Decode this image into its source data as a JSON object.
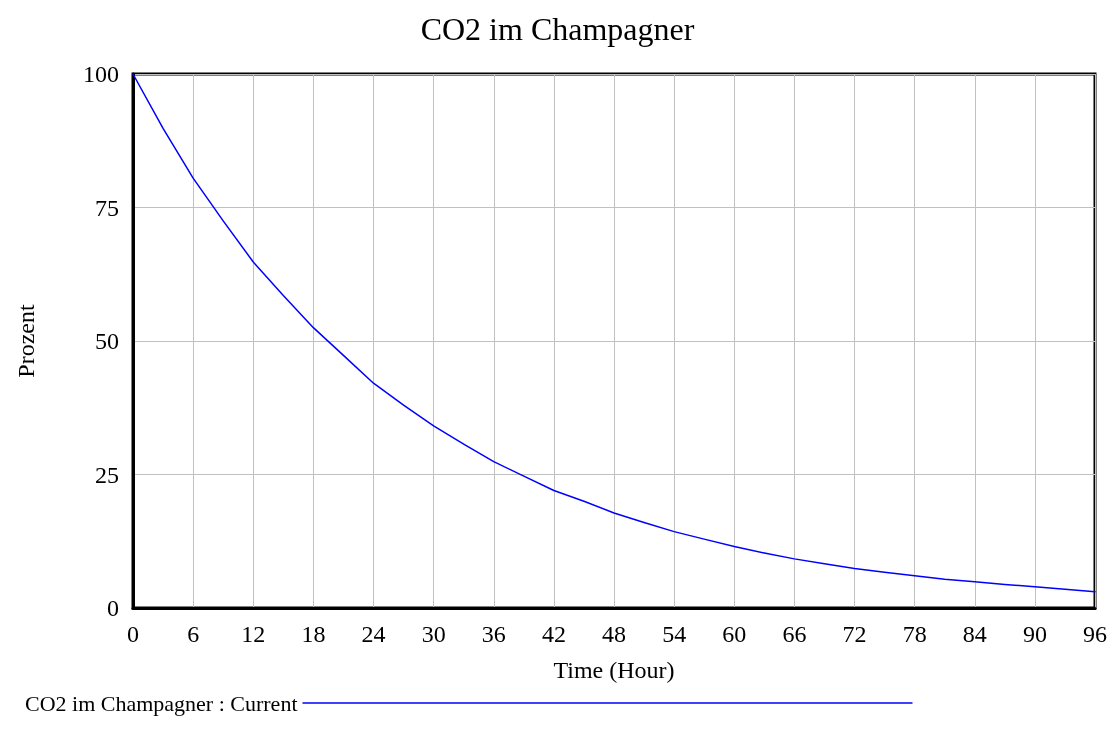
{
  "chart_data": {
    "type": "line",
    "title": "CO2 im Champagner",
    "xlabel": "Time (Hour)",
    "ylabel": "Prozent",
    "x": [
      0,
      3,
      6,
      9,
      12,
      15,
      18,
      21,
      24,
      27,
      30,
      33,
      36,
      39,
      42,
      45,
      48,
      51,
      54,
      57,
      60,
      63,
      66,
      69,
      72,
      75,
      78,
      81,
      84,
      87,
      90,
      93,
      96
    ],
    "series": [
      {
        "name": "CO2 im Champagner : Current",
        "color": "#0000ff",
        "values": [
          100,
          89.8,
          80.5,
          72.5,
          64.8,
          58.5,
          52.5,
          47.3,
          42.1,
          38,
          34.1,
          30.7,
          27.4,
          24.7,
          22,
          20,
          17.8,
          16,
          14.3,
          12.9,
          11.5,
          10.3,
          9.2,
          8.3,
          7.4,
          6.7,
          6.05,
          5.4,
          4.9,
          4.4,
          4,
          3.5,
          3.05
        ]
      }
    ],
    "xlim": [
      0,
      96
    ],
    "xticks": [
      0,
      6,
      12,
      18,
      24,
      30,
      36,
      42,
      48,
      54,
      60,
      66,
      72,
      78,
      84,
      90,
      96
    ],
    "ylim": [
      0,
      100
    ],
    "yticks": [
      0,
      25,
      50,
      75,
      100
    ],
    "grid": true,
    "legend": "bottom left",
    "marker": "none",
    "line_style": "solid"
  }
}
